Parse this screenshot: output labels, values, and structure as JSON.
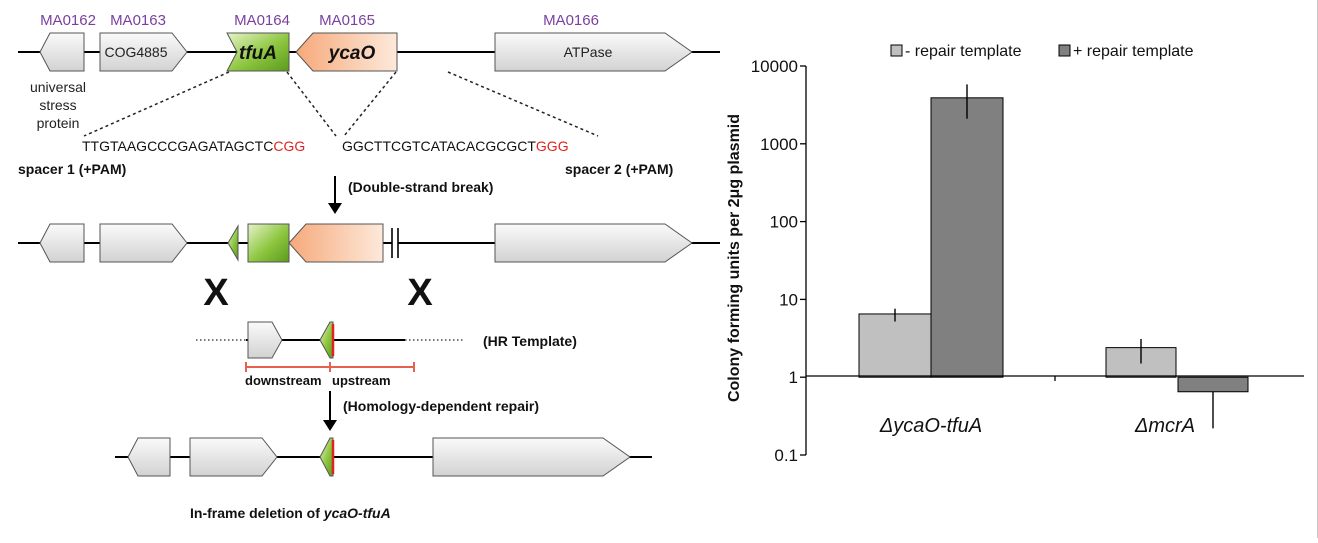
{
  "top_genes": {
    "locus_tags": [
      "MA0162",
      "MA0163",
      "MA0164",
      "MA0165",
      "MA0166"
    ],
    "labels": [
      "COG4885",
      "tfuA",
      "ycaO",
      "ATPase"
    ],
    "universal_label": [
      "universal",
      "stress",
      "protein"
    ]
  },
  "spacers": {
    "spacer1_seq": "TTGTAAGCCCGAGATAGCTC",
    "spacer1_pam": "CGG",
    "spacer2_seq": "GGCTTCGTCATACACGCGCT",
    "spacer2_pam": "GGG",
    "spacer1_label": "spacer 1 (+PAM)",
    "spacer2_label": "spacer 2 (+PAM)"
  },
  "steps": {
    "dsb": "(Double-strand break)",
    "hr": "(HR Template)",
    "downstream": "downstream",
    "upstream": "upstream",
    "hdr": "(Homology-dependent repair)",
    "crossover": "X",
    "final_prefix": "In-frame deletion of ",
    "final_gene": "ycaO-tfuA"
  },
  "colors": {
    "gene_gray": "#e6e6e6",
    "tfuA": "#8dc63f",
    "ycaO": "#f9c9a8",
    "pam": "#e0231f",
    "locus": "#7b3fa0",
    "bar_light": "#c0c0c0",
    "bar_dark": "#808080"
  },
  "chart_data": {
    "type": "bar",
    "ylabel": "Colony forming units per 2μg plasmid",
    "yscale": "log",
    "ylim": [
      0.1,
      10000
    ],
    "yticks": [
      "0.1",
      "1",
      "10",
      "100",
      "1000",
      "10000"
    ],
    "categories": [
      "ΔycaO-tfuA",
      "ΔmcrA"
    ],
    "series": [
      {
        "name": "- repair template",
        "values": [
          6.5,
          2.4
        ],
        "err_low": [
          5.2,
          1.5
        ],
        "err_high": [
          7.6,
          3.1
        ],
        "color": "#c0c0c0"
      },
      {
        "name": "+ repair template",
        "values": [
          3900,
          0.65
        ],
        "err_low": [
          2100,
          0.22
        ],
        "err_high": [
          5800,
          0.65
        ],
        "color": "#808080"
      }
    ],
    "legend": "top"
  }
}
